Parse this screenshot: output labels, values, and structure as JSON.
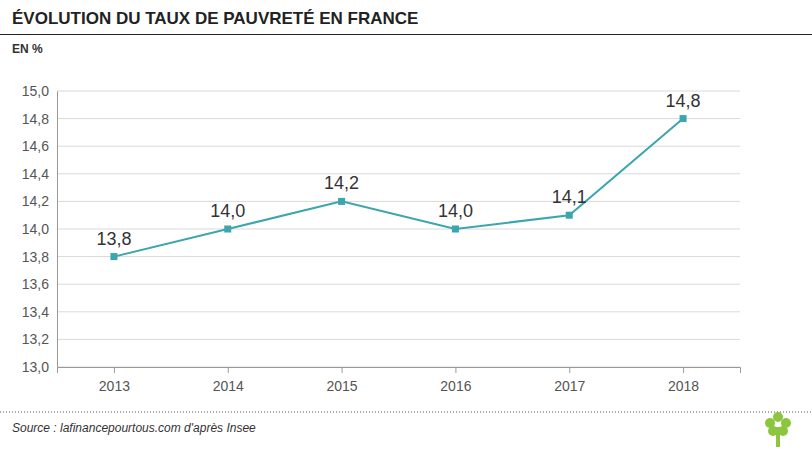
{
  "chart_data": {
    "type": "line",
    "title": "ÉVOLUTION DU TAUX DE PAUVRETÉ EN FRANCE",
    "subtitle": "EN %",
    "source": "Source : lafinancepourtous.com d'après Insee",
    "categories": [
      "2013",
      "2014",
      "2015",
      "2016",
      "2017",
      "2018"
    ],
    "values": [
      13.8,
      14.0,
      14.2,
      14.0,
      14.1,
      14.8
    ],
    "value_labels": [
      "13,8",
      "14,0",
      "14,2",
      "14,0",
      "14,1",
      "14,8"
    ],
    "color": "#3ba6ad",
    "marker": "square",
    "data_labels": true,
    "grid": true,
    "ylim": [
      13.0,
      15.0
    ],
    "yticks": [
      {
        "value": 13.0,
        "label": "13,0"
      },
      {
        "value": 13.2,
        "label": "13,2"
      },
      {
        "value": 13.4,
        "label": "13,4"
      },
      {
        "value": 13.6,
        "label": "13,6"
      },
      {
        "value": 13.8,
        "label": "13,8"
      },
      {
        "value": 14.0,
        "label": "14,0"
      },
      {
        "value": 14.2,
        "label": "14,2"
      },
      {
        "value": 14.4,
        "label": "14,4"
      },
      {
        "value": 14.6,
        "label": "14,6"
      },
      {
        "value": 14.8,
        "label": "14,8"
      },
      {
        "value": 15.0,
        "label": "15,0"
      }
    ]
  }
}
